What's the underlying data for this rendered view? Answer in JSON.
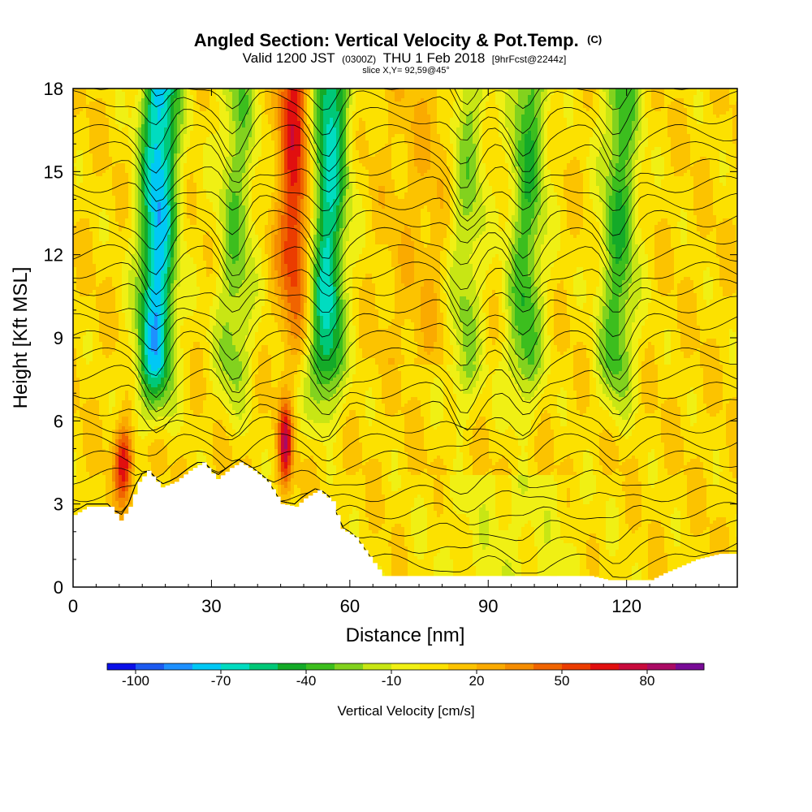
{
  "chart_data": {
    "type": "heatmap",
    "title": "Angled Section: Vertical Velocity & Pot.Temp.",
    "title_unit": "(C)",
    "subtitle": {
      "part1": "Valid 1200 JST",
      "part2": "(0300Z)",
      "part3": "THU 1 Feb 2018",
      "part4": "[9hrFcst@2244z]"
    },
    "slice": "slice X,Y= 92,59@45°",
    "xlabel": "Distance [nm]",
    "ylabel": "Height [Kft MSL]",
    "xlim": [
      0,
      144
    ],
    "ylim": [
      0,
      18
    ],
    "xticks": [
      "0",
      "30",
      "60",
      "90",
      "120"
    ],
    "yticks": [
      "0",
      "3",
      "6",
      "9",
      "12",
      "15",
      "18"
    ],
    "colorbar": {
      "label": "Vertical Velocity [cm/s]",
      "min": -110,
      "max": 100,
      "step": 10,
      "ticks": [
        "-100",
        "-70",
        "-40",
        "-10",
        "20",
        "50",
        "80"
      ],
      "colors": [
        "#0a10e8",
        "#1c5af0",
        "#1e90ff",
        "#00c8f5",
        "#00dcc0",
        "#00c878",
        "#14aa28",
        "#3cbe1e",
        "#82d21e",
        "#c8e614",
        "#f0f014",
        "#fce100",
        "#fcc300",
        "#faaa00",
        "#f58c00",
        "#f06400",
        "#eb3c00",
        "#e10f0f",
        "#c80a3c",
        "#aa0a64",
        "#780a96"
      ]
    },
    "updraft_bands": [
      {
        "x": 18,
        "min": -85
      },
      {
        "x": 35,
        "min": -35
      },
      {
        "x": 55,
        "min": -70
      },
      {
        "x": 85,
        "min": -35
      },
      {
        "x": 98,
        "min": -45
      },
      {
        "x": 118,
        "min": -45
      }
    ],
    "warm_bands": [
      {
        "x": 48,
        "max": 55
      },
      {
        "x": 11,
        "max": 60
      },
      {
        "x": 46,
        "max": 65
      }
    ],
    "terrain_kft": [
      [
        0,
        2.6
      ],
      [
        3,
        2.9
      ],
      [
        8,
        2.9
      ],
      [
        10,
        2.4
      ],
      [
        12,
        2.9
      ],
      [
        14,
        3.8
      ],
      [
        16,
        4.2
      ],
      [
        19,
        3.6
      ],
      [
        22,
        3.8
      ],
      [
        25,
        4.2
      ],
      [
        28,
        4.5
      ],
      [
        31,
        3.9
      ],
      [
        34,
        4.3
      ],
      [
        36,
        4.5
      ],
      [
        39,
        4.2
      ],
      [
        42,
        3.8
      ],
      [
        45,
        3.0
      ],
      [
        48,
        2.9
      ],
      [
        50,
        3.2
      ],
      [
        53,
        3.5
      ],
      [
        56,
        3.1
      ],
      [
        58,
        2.1
      ],
      [
        61,
        1.8
      ],
      [
        64,
        1.1
      ],
      [
        67,
        0.4
      ],
      [
        74,
        0.4
      ],
      [
        112,
        0.4
      ],
      [
        116,
        0.25
      ],
      [
        125,
        0.25
      ],
      [
        128,
        0.5
      ],
      [
        135,
        1.0
      ],
      [
        140,
        1.2
      ],
      [
        144,
        1.2
      ]
    ]
  }
}
